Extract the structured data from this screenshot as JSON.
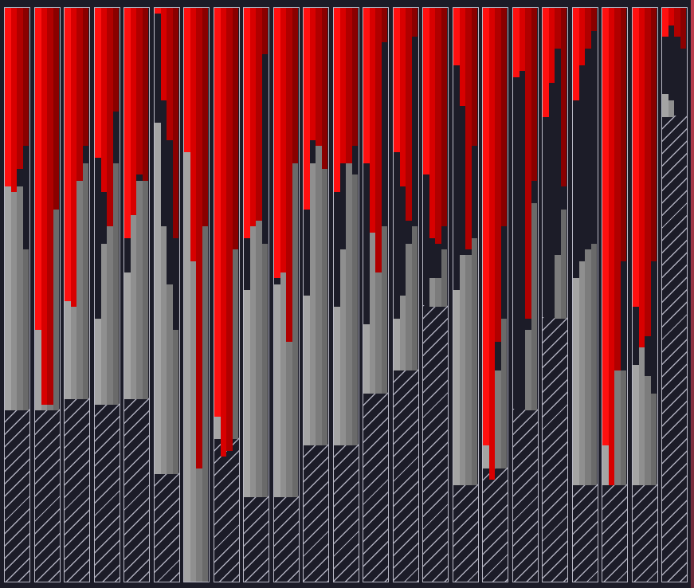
{
  "game": {
    "colors": {
      "background": "#1c1c28",
      "border": "#b9b9c6",
      "red_bright": "#ff1010",
      "red_dark": "#8a0000",
      "gray_light": "#a4a4a4",
      "gray_dark": "#6a6a6a"
    },
    "columns": [
      {
        "depth": [
          0.31,
          0.32,
          0.28,
          0.24
        ],
        "fill": [
          0.69,
          0.74,
          0.69,
          0.58
        ]
      },
      {
        "depth": [
          0.56,
          0.69,
          0.69,
          0.35
        ],
        "fill": [
          0.58,
          0.58,
          0.69,
          0.75
        ]
      },
      {
        "depth": [
          0.51,
          0.52,
          0.3,
          0.24
        ],
        "fill": [
          0.68,
          0.75,
          0.76,
          0.73
        ]
      },
      {
        "depth": [
          0.26,
          0.32,
          0.38,
          0.18
        ],
        "fill": [
          0.46,
          0.59,
          0.69,
          0.73
        ]
      },
      {
        "depth": [
          0.4,
          0.36,
          0.29,
          0.3
        ],
        "fill": [
          0.54,
          0.66,
          0.7,
          0.7
        ]
      },
      {
        "depth": [
          0.01,
          0.16,
          0.23,
          0.4
        ],
        "fill": [
          0.8,
          0.62,
          0.52,
          0.44
        ]
      },
      {
        "depth": [
          0.25,
          0.44,
          0.8,
          0.38
        ],
        "fill": [
          0.78,
          0.84,
          0.9,
          0.93
        ]
      },
      {
        "depth": [
          0.71,
          0.78,
          0.77,
          0.42
        ],
        "fill": [
          0.46,
          0.69,
          0.79,
          0.88
        ]
      },
      {
        "depth": [
          0.4,
          0.38,
          0.37,
          0.08
        ],
        "fill": [
          0.51,
          0.73,
          0.79,
          0.59
        ]
      },
      {
        "depth": [
          0.47,
          0.46,
          0.58,
          0.27
        ],
        "fill": [
          0.52,
          0.66,
          0.76,
          0.79
        ]
      },
      {
        "depth": [
          0.35,
          0.23,
          0.24,
          0.28
        ],
        "fill": [
          0.5,
          0.73,
          0.76,
          0.81
        ]
      },
      {
        "depth": [
          0.32,
          0.27,
          0.27,
          0.24
        ],
        "fill": [
          0.48,
          0.58,
          0.74,
          0.71
        ]
      },
      {
        "depth": [
          0.27,
          0.39,
          0.46,
          0.06
        ],
        "fill": [
          0.45,
          0.63,
          0.75,
          0.62
        ]
      },
      {
        "depth": [
          0.25,
          0.31,
          0.37,
          0.05
        ],
        "fill": [
          0.46,
          0.5,
          0.59,
          0.62
        ]
      },
      {
        "depth": [
          0.29,
          0.4,
          0.41,
          0.38
        ],
        "fill": [
          0.46,
          0.53,
          0.53,
          0.58
        ]
      },
      {
        "depth": [
          0.1,
          0.17,
          0.42,
          0.24
        ],
        "fill": [
          0.51,
          0.57,
          0.57,
          0.6
        ]
      },
      {
        "depth": [
          0.76,
          0.82,
          0.58,
          0.38
        ],
        "fill": [
          0.31,
          0.31,
          0.37,
          0.46
        ]
      },
      {
        "depth": [
          0.12,
          0.11,
          0.54,
          0.3
        ],
        "fill": [
          0.26,
          0.26,
          0.44,
          0.66
        ]
      },
      {
        "depth": [
          0.19,
          0.13,
          0.07,
          0.31
        ],
        "fill": [
          0.36,
          0.38,
          0.57,
          0.65
        ]
      },
      {
        "depth": [
          0.16,
          0.1,
          0.07,
          0.04
        ],
        "fill": [
          0.53,
          0.56,
          0.58,
          0.59
        ]
      },
      {
        "depth": [
          0.76,
          0.83,
          0.63,
          0.44
        ],
        "fill": [
          0.31,
          0.38,
          0.38,
          0.37
        ]
      },
      {
        "depth": [
          0.52,
          0.59,
          0.57,
          0.44
        ],
        "fill": [
          0.38,
          0.42,
          0.36,
          0.33
        ]
      },
      {
        "depth": [
          0.05,
          0.03,
          0.05,
          0.07
        ],
        "fill": [
          0.85,
          0.84,
          0.81,
          0.8
        ]
      }
    ],
    "hatch_levels": [
      0.3,
      0.3,
      0.32,
      0.31,
      0.32,
      0.19,
      0.0,
      0.25,
      0.15,
      0.15,
      0.24,
      0.24,
      0.33,
      0.37,
      0.48,
      0.17,
      0.2,
      0.3,
      0.46,
      0.17,
      0.17,
      0.17,
      0.81
    ]
  }
}
